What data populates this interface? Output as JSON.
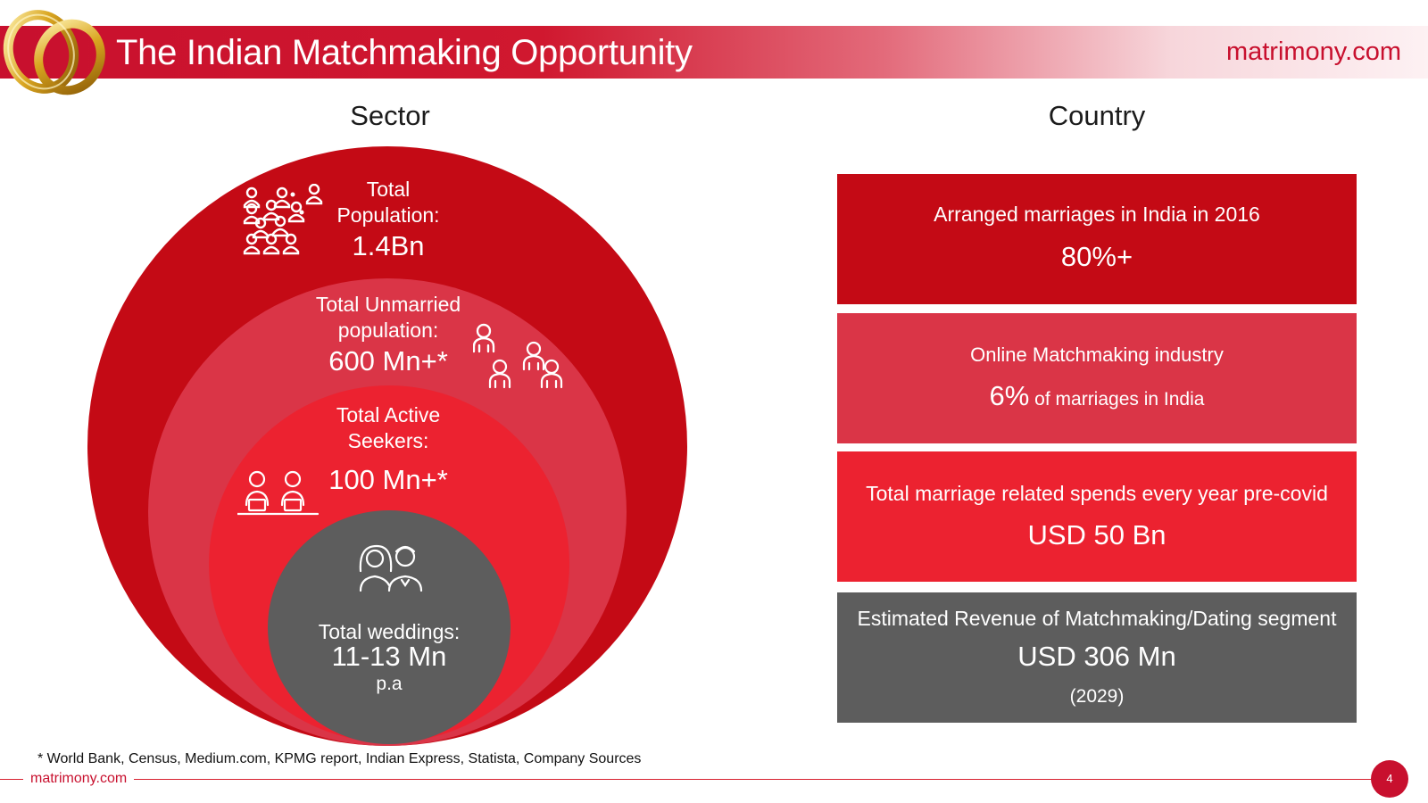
{
  "header": {
    "title": "The Indian Matchmaking Opportunity",
    "brand": "matrimony.com"
  },
  "sector": {
    "heading": "Sector",
    "circles": [
      {
        "label_line1": "Total",
        "label_line2": "Population:",
        "value": "1.4Bn",
        "icon": "crowd-icon"
      },
      {
        "label_line1": "Total  Unmarried",
        "label_line2": "population:",
        "value": "600 Mn+*",
        "icon": "people-group-icon"
      },
      {
        "label_line1": "Total Active",
        "label_line2": "Seekers:",
        "value": "100 Mn+*",
        "icon": "seekers-at-laptop-icon"
      },
      {
        "label_line1": "Total weddings:",
        "value": "11-13 Mn",
        "sub": "p.a",
        "icon": "bride-groom-icon"
      }
    ]
  },
  "country": {
    "heading": "Country",
    "boxes": [
      {
        "label": "Arranged marriages in India in 2016",
        "value": "80%+"
      },
      {
        "label": "Online Matchmaking industry",
        "value": "6%",
        "value_suffix": " of marriages in India"
      },
      {
        "label": "Total marriage related spends every year pre-covid",
        "value": "USD 50 Bn"
      },
      {
        "label": "Estimated Revenue of Matchmaking/Dating segment",
        "value": "USD 306 Mn",
        "sub": "(2029)"
      }
    ]
  },
  "footer": {
    "footnote": "* World Bank, Census, Medium.com, KPMG report, Indian Express, Statista, Company Sources",
    "brand": "matrimony.com",
    "page_number": "4"
  },
  "colors": {
    "brand_red": "#c8102e",
    "circle_outer": "#c40a15",
    "circle_unmarried": "#da3547",
    "circle_seekers": "#ec2230",
    "circle_weddings": "#5d5d5d"
  }
}
